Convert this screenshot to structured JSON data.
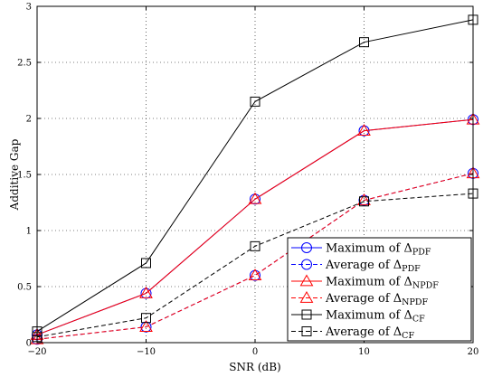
{
  "chart_data": {
    "type": "line",
    "xlabel": "SNR (dB)",
    "ylabel": "Additive Gap",
    "xlim": [
      -20,
      20
    ],
    "ylim": [
      0,
      3
    ],
    "xticks": [
      -20,
      -10,
      0,
      10,
      20
    ],
    "xtick_labels": [
      "−20",
      "−10",
      "0",
      "10",
      "20"
    ],
    "yticks": [
      0,
      0.5,
      1,
      1.5,
      2,
      2.5,
      3
    ],
    "ytick_labels": [
      "0",
      "0.5",
      "1",
      "1.5",
      "2",
      "2.5",
      "3"
    ],
    "grid": true,
    "legend_position": "bottom-right",
    "x": [
      -20,
      -10,
      0,
      10,
      20
    ],
    "series": [
      {
        "name_main": "Maximum of Δ",
        "name_sub": "PDF",
        "values": [
          0.07,
          0.44,
          1.28,
          1.89,
          1.99
        ],
        "color": "#0000ff",
        "dash": "solid",
        "marker": "circle"
      },
      {
        "name_main": "Average    of Δ",
        "name_sub": "PDF",
        "values": [
          0.03,
          0.14,
          0.6,
          1.27,
          1.51
        ],
        "color": "#0000ff",
        "dash": "dashed",
        "marker": "circle"
      },
      {
        "name_main": "Maximum of Δ",
        "name_sub": "NPDF",
        "values": [
          0.07,
          0.44,
          1.28,
          1.89,
          1.99
        ],
        "color": "#ff0000",
        "dash": "solid",
        "marker": "triangle"
      },
      {
        "name_main": "Average    of Δ",
        "name_sub": "NPDF",
        "values": [
          0.03,
          0.14,
          0.6,
          1.27,
          1.51
        ],
        "color": "#ff0000",
        "dash": "dashed",
        "marker": "triangle"
      },
      {
        "name_main": "Maximum of Δ",
        "name_sub": "CF",
        "values": [
          0.1,
          0.71,
          2.15,
          2.68,
          2.88
        ],
        "color": "#000000",
        "dash": "solid",
        "marker": "square"
      },
      {
        "name_main": "Average    of Δ",
        "name_sub": "CF",
        "values": [
          0.05,
          0.22,
          0.86,
          1.26,
          1.33
        ],
        "color": "#000000",
        "dash": "dashed",
        "marker": "square"
      }
    ]
  }
}
